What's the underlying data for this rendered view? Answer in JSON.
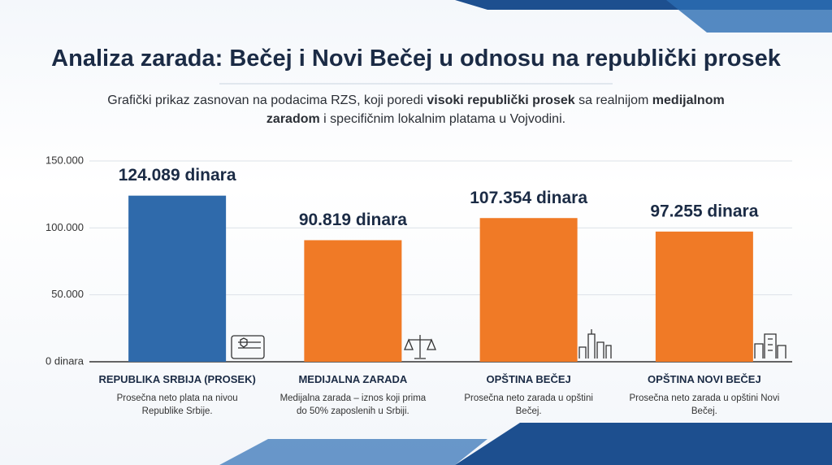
{
  "chart_data": {
    "type": "bar",
    "title": "Analiza zarada: Bečej i Novi Bečej u odnosu na republički prosek",
    "subtitle_parts": [
      {
        "text": "Grafički prikaz zasnovan na podacima RZS, koji poredi ",
        "bold": false
      },
      {
        "text": "visoki republički prosek",
        "bold": true
      },
      {
        "text": " sa realnijom ",
        "bold": false
      },
      {
        "text": "medijalnom zaradom",
        "bold": true
      },
      {
        "text": " i specifičnim lokalnim platama u Vojvodini.",
        "bold": false
      }
    ],
    "categories": [
      "REPUBLIKA SRBIJA (PROSEK)",
      "MEDIJALNA ZARADA",
      "OPŠTINA BEČEJ",
      "OPŠTINA NOVI BEČEJ"
    ],
    "descriptions": [
      "Prosečna neto plata na nivou Republike Srbije.",
      "Medijalna zarada – iznos koji prima do 50% zaposlenih u Srbiji.",
      "Prosečna neto zarada u opštini Bečej.",
      "Prosečna neto zarada u opštini Novi Bečej."
    ],
    "values": [
      124089,
      90819,
      107354,
      97255
    ],
    "value_labels": [
      "124.089 dinara",
      "90.819 dinara",
      "107.354 dinara",
      "97.255 dinara"
    ],
    "colors": [
      "#2f6aab",
      "#f07a26",
      "#f07a26",
      "#f07a26"
    ],
    "ylim": [
      0,
      150000
    ],
    "yticks": [
      {
        "value": 0,
        "label": "0 dinara"
      },
      {
        "value": 50000,
        "label": "50.000"
      },
      {
        "value": 100000,
        "label": "100.000"
      },
      {
        "value": 150000,
        "label": "150.000"
      }
    ],
    "grid": true
  }
}
